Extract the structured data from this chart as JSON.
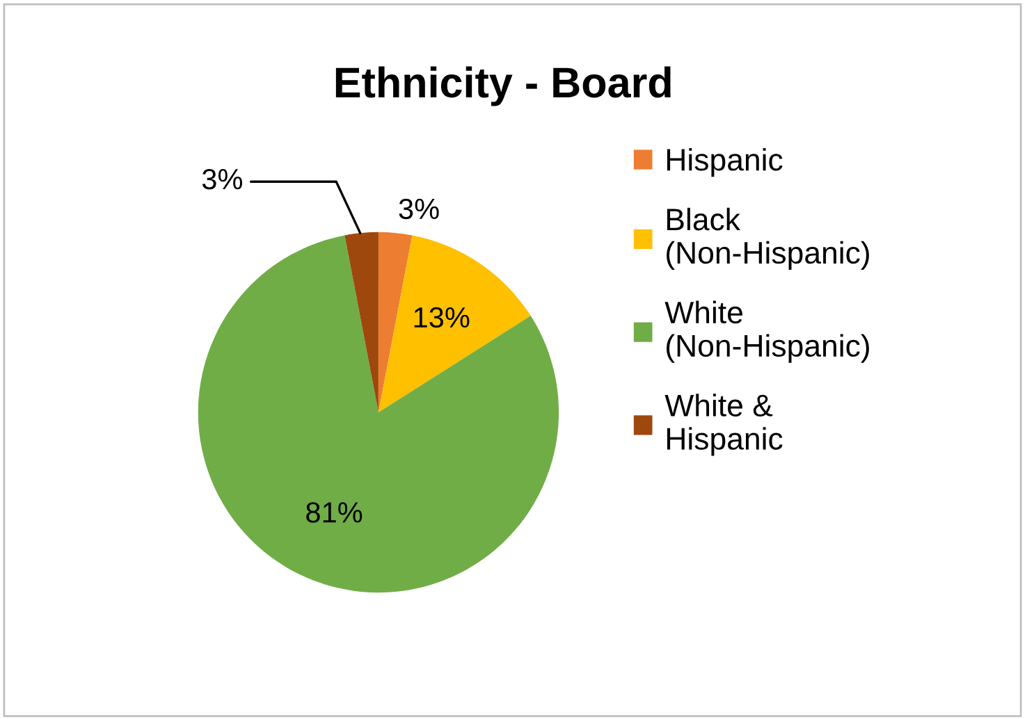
{
  "chart_data": {
    "type": "pie",
    "title": "Ethnicity - Board",
    "categories": [
      "Hispanic",
      "Black (Non-Hispanic)",
      "White (Non-Hispanic)",
      "White & Hispanic"
    ],
    "values": [
      3,
      13,
      81,
      3
    ],
    "colors": [
      "#ed7d31",
      "#ffc000",
      "#70ad47",
      "#9e480e"
    ],
    "value_labels": [
      "3%",
      "13%",
      "81%",
      "3%"
    ],
    "legend": "right"
  }
}
